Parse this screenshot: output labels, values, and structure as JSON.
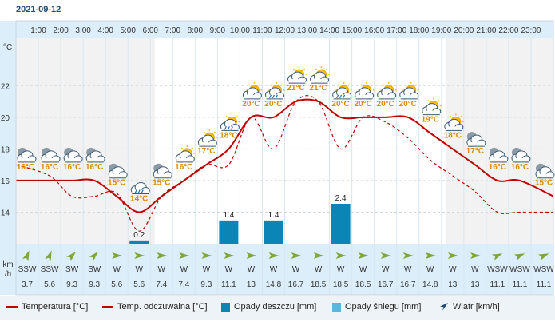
{
  "date": "2021-09-12",
  "y_unit": "°C",
  "wind_unit_top": "km",
  "wind_unit_bottom": "/h",
  "legend": {
    "temp": "Temperatura [°C]",
    "feel": "Temp. odczuwalna [°C]",
    "rain": "Opady deszczu [mm]",
    "snow": "Opady śniegu [mm]",
    "wind": "Wiatr [km/h]"
  },
  "colors": {
    "temp": "#c00000",
    "rain": "#0a85b5",
    "snow": "#5ab8d6",
    "temp_label": "#d98a00",
    "header": "#dceefa"
  },
  "chart_data": {
    "type": "line",
    "hours": [
      "1:00",
      "2:00",
      "3:00",
      "4:00",
      "5:00",
      "6:00",
      "7:00",
      "8:00",
      "9:00",
      "10:00",
      "11:00",
      "12:00",
      "13:00",
      "14:00",
      "15:00",
      "16:00",
      "17:00",
      "18:00",
      "19:00",
      "20:00",
      "21:00",
      "22:00",
      "23:00"
    ],
    "y_ticks": [
      14,
      16,
      18,
      20,
      22
    ],
    "ylim": [
      12,
      25
    ],
    "temperature": [
      16,
      16,
      16,
      16,
      15,
      14,
      15,
      16,
      17,
      18,
      20,
      20,
      21,
      21,
      20,
      20,
      20,
      20,
      19,
      18,
      17,
      16,
      16,
      15
    ],
    "feels_like": [
      17,
      16.3,
      15,
      15,
      15.2,
      12.8,
      15,
      16,
      17,
      17,
      20,
      18,
      21,
      21,
      18,
      20,
      19.7,
      18.7,
      17.3,
      16.3,
      15.3,
      14,
      14,
      14
    ],
    "temp_labels": [
      "16°C",
      "16°C",
      "16°C",
      "16°C",
      "15°C",
      "14°C",
      "15°C",
      "16°C",
      "17°C",
      "18°C",
      "20°C",
      "20°C",
      "21°C",
      "21°C",
      "20°C",
      "20°C",
      "20°C",
      "20°C",
      "19°C",
      "18°C",
      "17°C",
      "16°C",
      "16°C",
      "15°C"
    ],
    "icons": [
      "cloud-night",
      "cloud-night",
      "cloud-night",
      "cloud-night",
      "cloud-night",
      "rain-cloud",
      "cloud-night",
      "partly-sunny",
      "partly-sunny",
      "rain-cloud-sun",
      "partly-sunny",
      "rain-cloud-sun",
      "partly-sunny",
      "partly-sunny",
      "rain-cloud-sun",
      "partly-sunny",
      "partly-sunny",
      "partly-sunny",
      "partly-sunny",
      "partly-sunny",
      "cloud-night",
      "cloud-night",
      "cloud-night",
      "cloud-night"
    ],
    "rain": [
      0,
      0,
      0,
      0,
      0,
      0.2,
      0,
      0,
      0,
      1.4,
      0,
      1.4,
      0,
      0,
      2.4,
      0,
      0,
      0,
      0,
      0,
      0,
      0,
      0,
      0
    ],
    "rain_labels": [
      "",
      "",
      "",
      "",
      "",
      "0.2",
      "",
      "",
      "",
      "1.4",
      "",
      "1.4",
      "",
      "",
      "2.4",
      "",
      "",
      "",
      "",
      "",
      "",
      "",
      "",
      ""
    ],
    "wind_dir": [
      "SSW",
      "SSW",
      "SW",
      "SW",
      "W",
      "W",
      "W",
      "W",
      "W",
      "W",
      "W",
      "W",
      "W",
      "W",
      "W",
      "W",
      "W",
      "W",
      "W",
      "W",
      "W",
      "WSW",
      "WSW",
      "WSW"
    ],
    "wind_speed": [
      "3.7",
      "5.6",
      "9.3",
      "9.3",
      "5.6",
      "5.6",
      "7.4",
      "7.4",
      "9.3",
      "11.1",
      "13",
      "14.8",
      "16.7",
      "18.5",
      "18.5",
      "18.5",
      "16.7",
      "16.7",
      "14.8",
      "13",
      "13",
      "11.1",
      "11.1",
      "11.1"
    ],
    "wind_angle_deg": [
      202,
      202,
      225,
      225,
      270,
      270,
      270,
      270,
      270,
      270,
      270,
      270,
      270,
      270,
      270,
      270,
      270,
      270,
      270,
      270,
      270,
      247,
      247,
      247
    ]
  }
}
